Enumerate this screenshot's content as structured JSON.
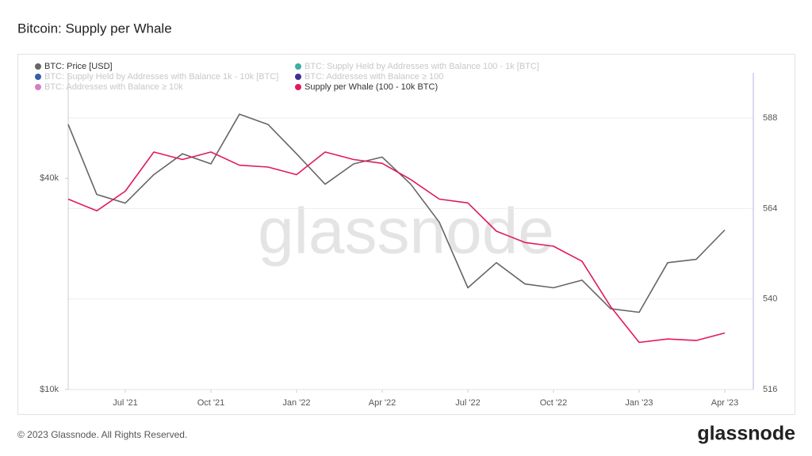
{
  "chart_data": {
    "type": "line",
    "title": "Bitcoin: Supply per Whale",
    "footer": "© 2023 Glassnode. All Rights Reserved.",
    "brand": "glassnode",
    "watermark": "glassnode",
    "x": [
      "2021-05",
      "2021-06",
      "2021-07",
      "2021-08",
      "2021-09",
      "2021-10",
      "2021-11",
      "2021-12",
      "2022-01",
      "2022-02",
      "2022-03",
      "2022-04",
      "2022-05",
      "2022-06",
      "2022-07",
      "2022-08",
      "2022-09",
      "2022-10",
      "2022-11",
      "2022-12",
      "2023-01",
      "2023-02",
      "2023-03",
      "2023-04"
    ],
    "xlim": [
      "2021-05",
      "2023-05"
    ],
    "xticks": [
      {
        "value": "2021-07",
        "label": "Jul '21"
      },
      {
        "value": "2021-10",
        "label": "Oct '21"
      },
      {
        "value": "2022-01",
        "label": "Jan '22"
      },
      {
        "value": "2022-04",
        "label": "Apr '22"
      },
      {
        "value": "2022-07",
        "label": "Jul '22"
      },
      {
        "value": "2022-10",
        "label": "Oct '22"
      },
      {
        "value": "2023-01",
        "label": "Jan '23"
      },
      {
        "value": "2023-04",
        "label": "Apr '23"
      }
    ],
    "yscale": "log",
    "ylim": [
      10000,
      80000
    ],
    "yticks": [
      {
        "value": 10000,
        "label": "$10k"
      },
      {
        "value": 40000,
        "label": "$40k"
      }
    ],
    "y2lim": [
      516,
      600
    ],
    "y2ticks": [
      516,
      540,
      564,
      588
    ],
    "grid": true,
    "legend": [
      {
        "name": "BTC: Price [USD]",
        "color": "#666666",
        "active": true
      },
      {
        "name": "BTC: Supply Held by Addresses with Balance 100 - 1k [BTC]",
        "color": "#26a69a",
        "active": false
      },
      {
        "name": "BTC: Supply Held by Addresses with Balance 1k - 10k [BTC]",
        "color": "#1e4fa0",
        "active": false
      },
      {
        "name": "BTC: Addresses with Balance ≥ 100",
        "color": "#2a1a8a",
        "active": false
      },
      {
        "name": "BTC: Addresses with Balance ≥ 10k",
        "color": "#d070c0",
        "active": false
      },
      {
        "name": "Supply per Whale (100 - 10k BTC)",
        "color": "#e0195f",
        "active": true
      }
    ],
    "series": [
      {
        "name": "BTC: Price [USD]",
        "color": "#666666",
        "axis": "y",
        "values": [
          57000,
          36000,
          34000,
          41000,
          47000,
          44000,
          61000,
          57000,
          47000,
          38500,
          44000,
          46000,
          38500,
          30000,
          19500,
          23000,
          20000,
          19500,
          20500,
          17000,
          16600,
          23000,
          23500,
          28500
        ]
      },
      {
        "name": "Supply per Whale (100 - 10k BTC)",
        "color": "#e0195f",
        "axis": "y2",
        "values": [
          566.5,
          563.4,
          568.6,
          579,
          577,
          579,
          575.5,
          575,
          573,
          579,
          577,
          576,
          571.7,
          566.5,
          565.5,
          558,
          555,
          554,
          550,
          538,
          528.5,
          529.4,
          529,
          531
        ]
      }
    ]
  }
}
